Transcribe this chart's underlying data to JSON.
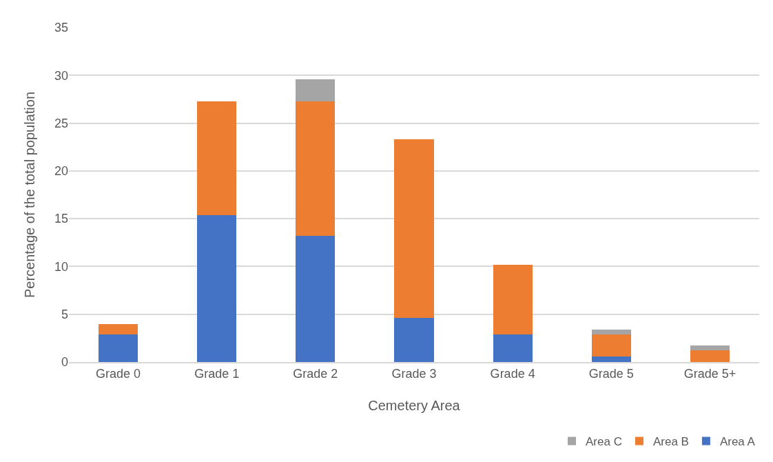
{
  "chart_data": {
    "type": "bar",
    "stacked": true,
    "xlabel": "Cemetery Area",
    "ylabel": "Percentage of the total population",
    "categories": [
      "Grade 0",
      "Grade 1",
      "Grade 2",
      "Grade 3",
      "Grade 4",
      "Grade 5",
      "Grade 5+"
    ],
    "series": [
      {
        "name": "Area A",
        "color": "#4472c4",
        "values": [
          2.9,
          15.4,
          13.2,
          4.6,
          2.9,
          0.6,
          0
        ]
      },
      {
        "name": "Area B",
        "color": "#ed7d31",
        "values": [
          1.1,
          11.9,
          14.1,
          18.7,
          7.3,
          2.3,
          1.2
        ]
      },
      {
        "name": "Area C",
        "color": "#a5a5a5",
        "values": [
          0,
          0,
          2.3,
          0,
          0,
          0.5,
          0.5
        ]
      }
    ],
    "ylim": [
      0,
      35
    ],
    "yticks": [
      0,
      5,
      10,
      15,
      20,
      25,
      30,
      35
    ],
    "grid": "y",
    "legend": "bottom right"
  }
}
